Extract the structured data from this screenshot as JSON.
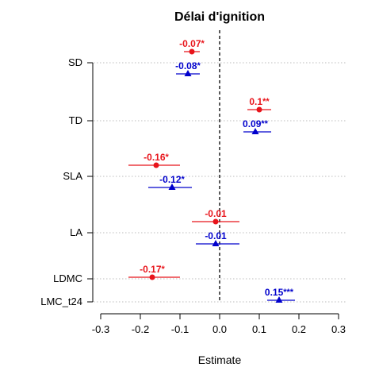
{
  "chart_data": {
    "type": "scatter",
    "title": "Délai d'ignition",
    "xlabel": "Estimate",
    "ylabel": "",
    "xlim": [
      -0.3,
      0.3
    ],
    "xticks": [
      "-0.3",
      "-0.2",
      "-0.1",
      "0.0",
      "0.1",
      "0.2",
      "0.3"
    ],
    "reference_line": 0,
    "grid": "horizontal dotted",
    "categories": [
      "SD",
      "TD",
      "SLA",
      "LA",
      "LDMC",
      "LMC_t24"
    ],
    "colors": {
      "red": "#e8141b",
      "blue": "#0000cc"
    },
    "series": [
      {
        "color": "red",
        "marker": "circle",
        "points": [
          {
            "category": "SD",
            "estimate": -0.07,
            "low": -0.09,
            "high": -0.05,
            "label": "-0.07",
            "stars": "*"
          },
          {
            "category": "TD",
            "estimate": 0.1,
            "low": 0.07,
            "high": 0.13,
            "label": "0.1",
            "stars": "**"
          },
          {
            "category": "SLA",
            "estimate": -0.16,
            "low": -0.23,
            "high": -0.1,
            "label": "-0.16",
            "stars": "*"
          },
          {
            "category": "LA",
            "estimate": -0.01,
            "low": -0.07,
            "high": 0.05,
            "label": "-0.01",
            "stars": ""
          },
          {
            "category": "LDMC",
            "estimate": -0.17,
            "low": -0.23,
            "high": -0.1,
            "label": "-0.17",
            "stars": "*"
          }
        ]
      },
      {
        "color": "blue",
        "marker": "triangle",
        "points": [
          {
            "category": "SD",
            "estimate": -0.08,
            "low": -0.11,
            "high": -0.05,
            "label": "-0.08",
            "stars": "*"
          },
          {
            "category": "TD",
            "estimate": 0.09,
            "low": 0.06,
            "high": 0.13,
            "label": "0.09",
            "stars": "**"
          },
          {
            "category": "SLA",
            "estimate": -0.12,
            "low": -0.18,
            "high": -0.07,
            "label": "-0.12",
            "stars": "*"
          },
          {
            "category": "LA",
            "estimate": -0.01,
            "low": -0.06,
            "high": 0.05,
            "label": "-0.01",
            "stars": ""
          },
          {
            "category": "LMC_t24",
            "estimate": 0.15,
            "low": 0.12,
            "high": 0.19,
            "label": "0.15",
            "stars": "***"
          }
        ]
      }
    ]
  }
}
